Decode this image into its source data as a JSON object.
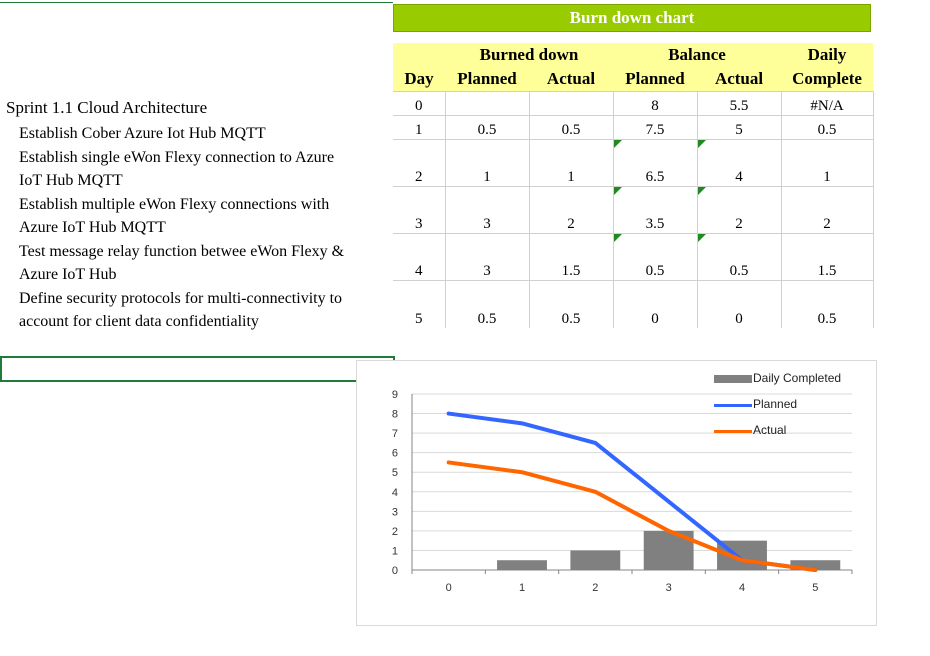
{
  "title": "Burn down chart",
  "table": {
    "header_top": [
      "",
      "Burned down",
      "Balance",
      "Daily"
    ],
    "header_bottom": [
      "Day",
      "Planned",
      "Actual",
      "Planned",
      "Actual",
      "Complete"
    ],
    "rows": [
      [
        "0",
        "",
        "",
        "8",
        "5.5",
        "#N/A"
      ],
      [
        "1",
        "0.5",
        "0.5",
        "7.5",
        "5",
        "0.5"
      ],
      [
        "2",
        "1",
        "1",
        "6.5",
        "4",
        "1"
      ],
      [
        "3",
        "3",
        "2",
        "3.5",
        "2",
        "2"
      ],
      [
        "4",
        "3",
        "1.5",
        "0.5",
        "0.5",
        "1.5"
      ],
      [
        "5",
        "0.5",
        "0.5",
        "0",
        "0",
        "0.5"
      ]
    ]
  },
  "tasks": {
    "sprint": "Sprint 1.1 Cloud Architecture",
    "t1": "Establish Cober Azure Iot Hub MQTT",
    "t2a": "Establish single eWon Flexy connection to Azure",
    "t2b": "IoT Hub MQTT",
    "t3a": "Establish multiple eWon Flexy connections with",
    "t3b": "Azure IoT Hub MQTT",
    "t4a": "Test message relay function betwee eWon Flexy &",
    "t4b": "Azure IoT Hub",
    "t5a": "Define security protocols for multi-connectivity to",
    "t5b": "account for client data confidentiality"
  },
  "colors": {
    "title_bg": "#99cc00",
    "header_bg": "#ffff99",
    "planned": "#3366ff",
    "actual": "#ff6600",
    "daily": "#808080"
  },
  "chart_data": {
    "type": "bar",
    "categories": [
      "0",
      "1",
      "2",
      "3",
      "4",
      "5"
    ],
    "series": [
      {
        "name": "Daily Completed",
        "type": "bar",
        "values": [
          null,
          0.5,
          1,
          2,
          1.5,
          0.5
        ]
      },
      {
        "name": "Planned",
        "type": "line",
        "values": [
          8,
          7.5,
          6.5,
          3.5,
          0.5,
          0
        ]
      },
      {
        "name": "Actual",
        "type": "line",
        "values": [
          5.5,
          5,
          4,
          2,
          0.5,
          0
        ]
      }
    ],
    "yticks": [
      "0",
      "1",
      "2",
      "3",
      "4",
      "5",
      "6",
      "7",
      "8",
      "9"
    ],
    "ylim": [
      0,
      9
    ],
    "grid": true,
    "legend": "top-right",
    "title": "",
    "xlabel": "",
    "ylabel": ""
  }
}
